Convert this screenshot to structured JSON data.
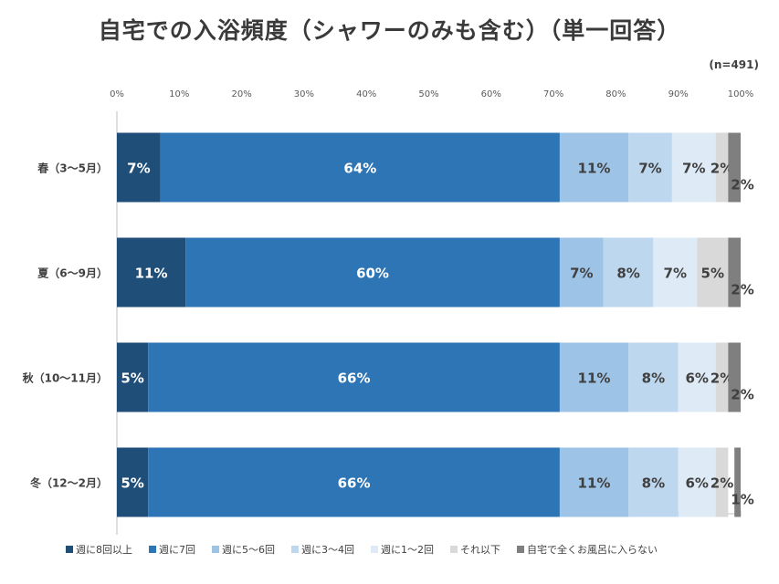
{
  "chart_data": {
    "type": "bar",
    "orientation": "horizontal",
    "stacked": true,
    "percent_stacked": true,
    "title": "自宅での入浴頻度（シャワーのみも含む）（単一回答）",
    "note": "(n=491)",
    "categories": [
      "春（3～5月）",
      "夏（6～9月）",
      "秋（10～11月）",
      "冬（12～2月）"
    ],
    "series": [
      {
        "name": "週に8回以上",
        "color": "#1f4e79",
        "values": [
          7,
          11,
          5,
          5
        ],
        "labels": [
          "7%",
          "11%",
          "5%",
          "5%"
        ]
      },
      {
        "name": "週に7回",
        "color": "#2e75b6",
        "values": [
          64,
          60,
          66,
          66
        ],
        "labels": [
          "64%",
          "60%",
          "66%",
          "66%"
        ]
      },
      {
        "name": "週に5～6回",
        "color": "#9dc3e6",
        "values": [
          11,
          7,
          11,
          11
        ],
        "labels": [
          "11%",
          "7%",
          "11%",
          "11%"
        ]
      },
      {
        "name": "週に3～4回",
        "color": "#bdd7ee",
        "values": [
          7,
          8,
          8,
          8
        ],
        "labels": [
          "7%",
          "8%",
          "8%",
          "8%"
        ]
      },
      {
        "name": "週に1～2回",
        "color": "#deebf7",
        "values": [
          7,
          7,
          6,
          6
        ],
        "labels": [
          "7%",
          "7%",
          "6%",
          "6%"
        ]
      },
      {
        "name": "それ以下",
        "color": "#d9d9d9",
        "values": [
          2,
          5,
          2,
          2
        ],
        "labels": [
          "2%",
          "5%",
          "2%",
          "2%"
        ]
      },
      {
        "name": "自宅で全くお風呂に入らない",
        "color": "#7f7f7f",
        "values": [
          2,
          2,
          2,
          1
        ],
        "labels": [
          "2%",
          "2%",
          "2%",
          "1%"
        ]
      }
    ],
    "xlim": [
      0,
      100
    ],
    "xticks": [
      "0%",
      "10%",
      "20%",
      "30%",
      "40%",
      "50%",
      "60%",
      "70%",
      "80%",
      "90%",
      "100%"
    ],
    "axis_position": "top",
    "legend_position": "bottom",
    "grid": false,
    "label_colors": {
      "dark_fill": "#ffffff",
      "light_fill": "#404040"
    }
  }
}
